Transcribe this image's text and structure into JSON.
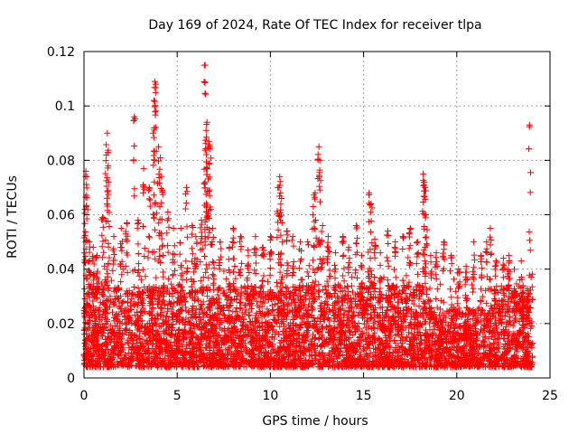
{
  "chart_data": {
    "type": "scatter",
    "title": "Day 169 of 2024, Rate Of TEC Index for receiver tlpa",
    "xlabel": "GPS time / hours",
    "ylabel": "ROTI / TECUs",
    "xlim": [
      0,
      25
    ],
    "ylim": [
      0,
      0.12
    ],
    "x_ticks": [
      "0",
      "5",
      "10",
      "15",
      "20",
      "25"
    ],
    "y_ticks": [
      "0",
      "0.02",
      "0.04",
      "0.06",
      "0.08",
      "0.1",
      "0.12"
    ],
    "grid": true,
    "marker": "+",
    "color": "#ff0000",
    "series": [
      {
        "points": [
          [
            0.05,
            0.062
          ],
          [
            0.1,
            0.076
          ],
          [
            0.15,
            0.074
          ],
          [
            0.3,
            0.05
          ],
          [
            0.5,
            0.048
          ],
          [
            0.7,
            0.045
          ],
          [
            1.0,
            0.059
          ],
          [
            1.2,
            0.082
          ],
          [
            1.25,
            0.09
          ],
          [
            1.3,
            0.078
          ],
          [
            1.6,
            0.052
          ],
          [
            2.0,
            0.055
          ],
          [
            2.3,
            0.057
          ],
          [
            2.7,
            0.096
          ],
          [
            2.9,
            0.058
          ],
          [
            3.2,
            0.077
          ],
          [
            3.5,
            0.07
          ],
          [
            3.8,
            0.109
          ],
          [
            3.85,
            0.108
          ],
          [
            3.75,
            0.102
          ],
          [
            3.7,
            0.09
          ],
          [
            4.0,
            0.085
          ],
          [
            4.1,
            0.081
          ],
          [
            4.2,
            0.069
          ],
          [
            4.5,
            0.061
          ],
          [
            4.8,
            0.055
          ],
          [
            5.2,
            0.055
          ],
          [
            5.5,
            0.07
          ],
          [
            5.8,
            0.056
          ],
          [
            6.0,
            0.052
          ],
          [
            6.3,
            0.058
          ],
          [
            6.5,
            0.115
          ],
          [
            6.6,
            0.094
          ],
          [
            6.55,
            0.091
          ],
          [
            6.7,
            0.087
          ],
          [
            6.75,
            0.085
          ],
          [
            6.6,
            0.077
          ],
          [
            6.5,
            0.072
          ],
          [
            6.9,
            0.055
          ],
          [
            7.3,
            0.05
          ],
          [
            7.8,
            0.048
          ],
          [
            8.0,
            0.055
          ],
          [
            8.4,
            0.052
          ],
          [
            8.8,
            0.047
          ],
          [
            9.2,
            0.052
          ],
          [
            9.6,
            0.048
          ],
          [
            10.0,
            0.052
          ],
          [
            10.4,
            0.07
          ],
          [
            10.5,
            0.074
          ],
          [
            10.55,
            0.068
          ],
          [
            10.6,
            0.066
          ],
          [
            10.9,
            0.054
          ],
          [
            11.2,
            0.052
          ],
          [
            11.6,
            0.05
          ],
          [
            12.0,
            0.05
          ],
          [
            12.3,
            0.063
          ],
          [
            12.4,
            0.068
          ],
          [
            12.6,
            0.085
          ],
          [
            12.65,
            0.08
          ],
          [
            12.8,
            0.056
          ],
          [
            13.1,
            0.052
          ],
          [
            13.5,
            0.046
          ],
          [
            13.9,
            0.052
          ],
          [
            14.2,
            0.048
          ],
          [
            14.6,
            0.056
          ],
          [
            14.9,
            0.045
          ],
          [
            15.3,
            0.068
          ],
          [
            15.4,
            0.064
          ],
          [
            15.6,
            0.051
          ],
          [
            15.9,
            0.046
          ],
          [
            16.3,
            0.054
          ],
          [
            16.7,
            0.05
          ],
          [
            17.1,
            0.052
          ],
          [
            17.5,
            0.055
          ],
          [
            17.9,
            0.05
          ],
          [
            18.2,
            0.075
          ],
          [
            18.25,
            0.072
          ],
          [
            18.3,
            0.07
          ],
          [
            18.35,
            0.06
          ],
          [
            18.6,
            0.045
          ],
          [
            18.9,
            0.046
          ],
          [
            19.3,
            0.05
          ],
          [
            19.7,
            0.045
          ],
          [
            20.1,
            0.04
          ],
          [
            20.5,
            0.041
          ],
          [
            20.9,
            0.05
          ],
          [
            21.3,
            0.045
          ],
          [
            21.6,
            0.05
          ],
          [
            21.8,
            0.055
          ],
          [
            22.1,
            0.043
          ],
          [
            22.5,
            0.044
          ],
          [
            22.8,
            0.045
          ],
          [
            23.1,
            0.032
          ],
          [
            23.5,
            0.031
          ],
          [
            23.8,
            0.029
          ],
          [
            23.9,
            0.093
          ]
        ]
      }
    ]
  }
}
